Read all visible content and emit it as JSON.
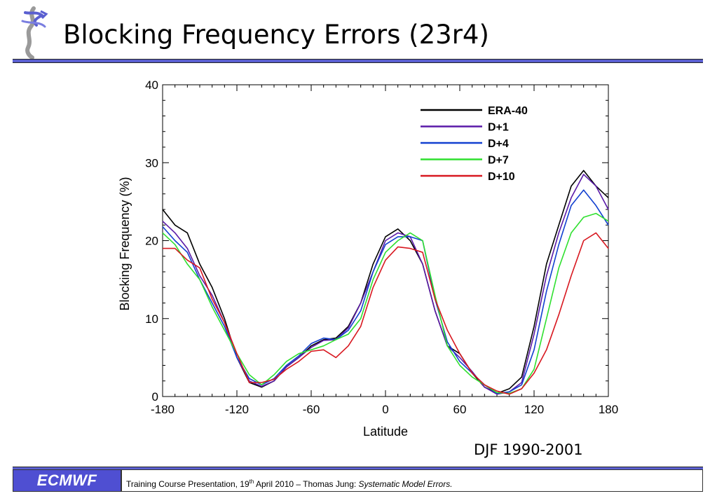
{
  "header": {
    "title": "Blocking Frequency Errors (23r4)"
  },
  "subtitle": "DJF 1990-2001",
  "footer": {
    "logo_text": "ECMWF",
    "text_pre": "Training Course Presentation, 19",
    "text_sup": "th",
    "text_mid": " April 2010 – Thomas Jung: ",
    "text_italic": "Systematic Model Errors."
  },
  "colors": {
    "rule": "#5a5fd0",
    "logo_bg": "#4f4fd2"
  },
  "chart_data": {
    "type": "line",
    "xlabel": "Latitude",
    "ylabel": "Blocking Frequency (%)",
    "xlim": [
      -180,
      180
    ],
    "ylim": [
      0,
      40
    ],
    "xticks": [
      -180,
      -120,
      -60,
      0,
      60,
      120,
      180
    ],
    "yticks": [
      0,
      10,
      20,
      30,
      40
    ],
    "xtick_labels": [
      "-180",
      "-120",
      "-60",
      "0",
      "60",
      "120",
      "180"
    ],
    "ytick_labels": [
      "0",
      "10",
      "20",
      "30",
      "40"
    ],
    "grid": false,
    "legend_position": "top-right",
    "x": [
      -180,
      -170,
      -160,
      -150,
      -140,
      -130,
      -120,
      -110,
      -100,
      -90,
      -80,
      -70,
      -60,
      -50,
      -40,
      -30,
      -20,
      -10,
      0,
      10,
      20,
      30,
      40,
      50,
      60,
      70,
      80,
      90,
      100,
      110,
      120,
      130,
      140,
      150,
      160,
      170,
      180
    ],
    "series": [
      {
        "name": "ERA-40",
        "color": "#000000",
        "values": [
          24,
          22,
          21,
          17,
          14,
          10,
          5,
          1.8,
          1.2,
          2.0,
          3.8,
          5,
          6.5,
          7.3,
          7.5,
          9,
          12,
          17,
          20.5,
          21.5,
          20,
          17,
          11,
          6.5,
          5.5,
          3,
          1.2,
          0.4,
          1.0,
          2.5,
          9,
          17,
          22,
          27,
          29,
          27,
          25.5
        ]
      },
      {
        "name": "D+1",
        "color": "#5a1aa8",
        "values": [
          22.5,
          21,
          19,
          15.5,
          13,
          9.5,
          5,
          2,
          1.3,
          2,
          3.8,
          5,
          6.3,
          7.2,
          7.3,
          8.8,
          12,
          16,
          20,
          21,
          20.5,
          17,
          11,
          6.5,
          5,
          3.2,
          1.2,
          0.3,
          0.6,
          1.8,
          8,
          15.5,
          21,
          25.5,
          28.5,
          27,
          24
        ]
      },
      {
        "name": "D+4",
        "color": "#1240d0",
        "values": [
          21.8,
          20,
          18.5,
          15,
          12,
          9,
          5,
          2.3,
          1.5,
          2.3,
          4,
          5.2,
          6.8,
          7.5,
          7.3,
          8.5,
          11,
          16,
          19.5,
          20.5,
          20.5,
          20,
          12.5,
          7,
          4.5,
          3,
          1.5,
          0.4,
          0.6,
          1.5,
          6,
          13.5,
          19.5,
          24.5,
          26.5,
          24.5,
          22
        ]
      },
      {
        "name": "D+7",
        "color": "#2fe02f",
        "values": [
          21,
          19.5,
          17,
          15,
          11.5,
          8.5,
          5.5,
          2.8,
          1.5,
          2.8,
          4.5,
          5.5,
          6,
          6.5,
          7.3,
          8,
          10,
          15,
          18.5,
          20,
          21,
          20,
          13,
          6.5,
          4,
          2.5,
          1.5,
          0.5,
          0.4,
          1,
          3.5,
          10,
          16.5,
          21,
          23,
          23.5,
          22.5
        ]
      },
      {
        "name": "D+10",
        "color": "#d81820",
        "values": [
          19,
          19,
          17.5,
          16.5,
          12.5,
          9.5,
          5.5,
          1.8,
          1.8,
          2.2,
          3.5,
          4.5,
          5.8,
          6,
          5,
          6.5,
          9,
          14,
          17.5,
          19.2,
          19,
          18.5,
          12.5,
          8.5,
          5.5,
          3,
          1.5,
          0.7,
          0.3,
          1,
          3,
          6,
          10.5,
          15.5,
          20,
          21,
          19
        ]
      }
    ]
  }
}
